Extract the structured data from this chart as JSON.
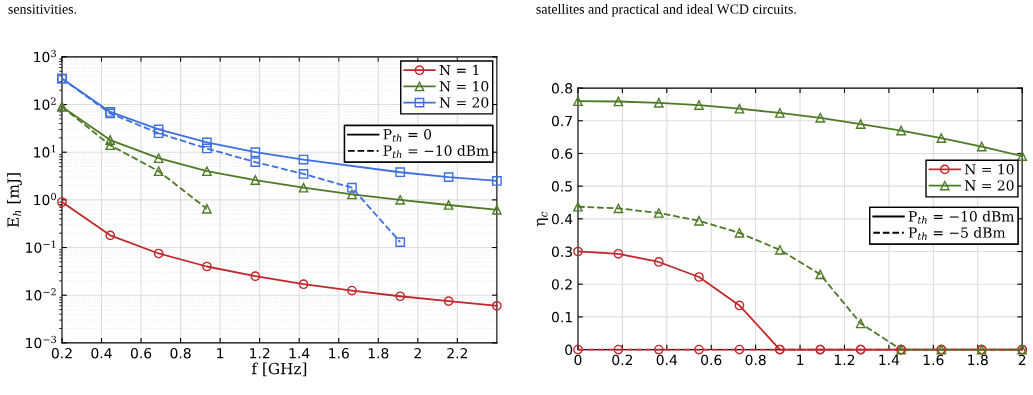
{
  "chart_data": [
    {
      "type": "line",
      "xlabel": "f [GHz]",
      "ylabel": "E$_{h}$ [mJ]",
      "log": "y",
      "grid": true,
      "legend": "top right",
      "annotations": [
        "sensitivities."
      ],
      "x": [
        0.2,
        0.444,
        0.689,
        0.933,
        1.178,
        1.422,
        1.667,
        1.911,
        2.156,
        2.4
      ],
      "xlim": [
        0.2,
        2.4
      ],
      "xticks": [
        0.2,
        0.4,
        0.6,
        0.8,
        1,
        1.2,
        1.4,
        1.6,
        1.8,
        2,
        2.2
      ],
      "ylim": [
        0.001,
        1000
      ],
      "yticks": [
        {
          "value": 0.001,
          "label": "10$^{−3}$"
        },
        {
          "value": 0.01,
          "label": "10$^{−2}$"
        },
        {
          "value": 0.1,
          "label": "10$^{−1}$"
        },
        {
          "value": 1,
          "label": "10$^{0}$"
        },
        {
          "value": 10,
          "label": "10$^{1}$"
        },
        {
          "value": 100,
          "label": "10$^{2}$"
        },
        {
          "value": 1000,
          "label": "10$^{3}$"
        }
      ],
      "series": [
        {
          "name": "N = 1",
          "color": "#c0282d",
          "marker": "circle",
          "line_style": "solid",
          "values": [
            0.9,
            0.18,
            0.075,
            0.04,
            0.025,
            0.017,
            0.0125,
            0.0095,
            0.0075,
            0.006
          ]
        },
        {
          "name": "N = 10",
          "color": "#4e7a27",
          "marker": "triangle",
          "line_style": "solid",
          "values": [
            90,
            18,
            7.5,
            4,
            2.6,
            1.8,
            1.3,
            1.0,
            0.78,
            0.62
          ]
        },
        {
          "name": "N = 20",
          "color": "#3f6fe0",
          "marker": "square",
          "line_style": "solid",
          "values": [
            350,
            70,
            30,
            16,
            10,
            7,
            null,
            3.8,
            3.0,
            2.5
          ]
        },
        {
          "color": "#4e7a27",
          "marker": "triangle",
          "line_style": "dashed",
          "values": [
            90,
            14,
            4,
            0.65,
            null,
            null,
            null,
            null,
            null,
            null
          ]
        },
        {
          "color": "#3f6fe0",
          "marker": "square",
          "line_style": "dashed",
          "values": [
            350,
            65,
            25,
            12,
            6.2,
            3.5,
            1.8,
            0.13,
            null,
            null
          ]
        },
        {
          "name": "P$_{th}$ = 0",
          "color": "#000000",
          "marker": "none",
          "line_style": "solid",
          "values": [
            null,
            null,
            null,
            null,
            null,
            null,
            null,
            null,
            null,
            null
          ]
        },
        {
          "name": "P$_{th}$ = −10 dBm",
          "color": "#000000",
          "marker": "none",
          "line_style": "dashed",
          "values": [
            null,
            null,
            null,
            null,
            null,
            null,
            null,
            null,
            null,
            null
          ]
        }
      ]
    },
    {
      "type": "line",
      "ylabel": "η$_{c}$",
      "grid": true,
      "legend": "right",
      "annotations": [
        "satellites and practical and ideal WCD circuits."
      ],
      "x": [
        0,
        0.182,
        0.364,
        0.545,
        0.727,
        0.909,
        1.091,
        1.273,
        1.455,
        1.636,
        1.818,
        2.0
      ],
      "xlim": [
        0,
        2
      ],
      "xticks": [
        0,
        0.2,
        0.4,
        0.6,
        0.8,
        1,
        1.2,
        1.4,
        1.6,
        1.8,
        2
      ],
      "ylim": [
        0,
        0.8
      ],
      "yticks": [
        0,
        0.1,
        0.2,
        0.3,
        0.4,
        0.5,
        0.6,
        0.7,
        0.8
      ],
      "series": [
        {
          "name": "N = 10",
          "color": "#c0282d",
          "marker": "circle",
          "line_style": "solid",
          "values": [
            0.3,
            0.293,
            0.268,
            0.222,
            0.135,
            0,
            0,
            0,
            0,
            0,
            0,
            0
          ]
        },
        {
          "name": "N = 20",
          "color": "#4e7a27",
          "marker": "triangle",
          "line_style": "solid",
          "values": [
            0.76,
            0.759,
            0.755,
            0.748,
            0.737,
            0.724,
            0.709,
            0.69,
            0.67,
            0.647,
            0.621,
            0.592
          ]
        },
        {
          "color": "#c0282d",
          "marker": "circle",
          "line_style": "dashed",
          "values": [
            0,
            0,
            0,
            0,
            0,
            0,
            0,
            0,
            0,
            0,
            0,
            0
          ]
        },
        {
          "color": "#4e7a27",
          "marker": "triangle",
          "line_style": "dashed",
          "values": [
            0.437,
            0.432,
            0.418,
            0.394,
            0.357,
            0.305,
            0.23,
            0.08,
            0,
            0,
            0,
            0
          ]
        },
        {
          "name": "P$_{th}$ = −10 dBm",
          "color": "#000000",
          "marker": "none",
          "line_style": "solid",
          "values": [
            null,
            null,
            null,
            null,
            null,
            null,
            null,
            null,
            null,
            null,
            null,
            null
          ]
        },
        {
          "name": "P$_{th}$ = −5 dBm",
          "color": "#000000",
          "marker": "none",
          "line_style": "dashed",
          "values": [
            null,
            null,
            null,
            null,
            null,
            null,
            null,
            null,
            null,
            null,
            null,
            null
          ]
        }
      ]
    }
  ]
}
